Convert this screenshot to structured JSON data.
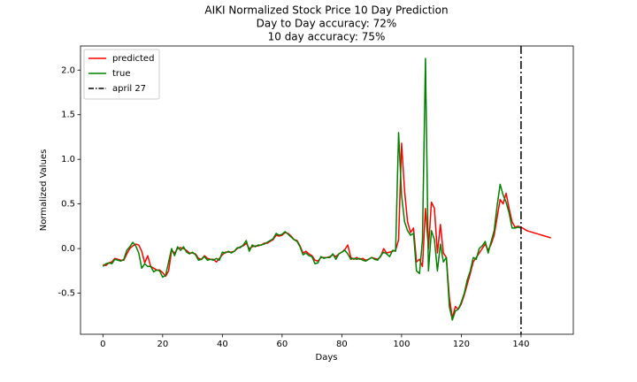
{
  "chart_data": {
    "type": "line",
    "title": "AIKI Normalized Stock Price 10 Day Prediction",
    "subtitle": [
      "Day to Day accuracy: 72%",
      "10 day accuracy: 75%"
    ],
    "x_label": "Days",
    "y_label": "Normalized Values",
    "xlim": [
      -7.5,
      157.5
    ],
    "ylim": [
      -0.96,
      2.27
    ],
    "xticks": [
      0,
      20,
      40,
      60,
      80,
      100,
      120,
      140
    ],
    "yticks": [
      -0.5,
      {
        "value": 0,
        "label": "0.0"
      },
      0.5,
      {
        "value": 1,
        "label": "1.0"
      },
      1.5,
      {
        "value": 2,
        "label": "2.0"
      }
    ],
    "legend": "upper left",
    "series": [
      {
        "name": "predicted",
        "color": "#ff0000",
        "x": [
          0,
          1,
          2,
          3,
          4,
          5,
          6,
          7,
          8,
          9,
          10,
          11,
          12,
          13,
          14,
          15,
          16,
          17,
          18,
          19,
          20,
          21,
          22,
          23,
          24,
          25,
          26,
          27,
          28,
          29,
          30,
          31,
          32,
          33,
          34,
          35,
          36,
          37,
          38,
          39,
          40,
          41,
          42,
          43,
          44,
          45,
          46,
          47,
          48,
          49,
          50,
          51,
          52,
          53,
          54,
          55,
          56,
          57,
          58,
          59,
          60,
          61,
          62,
          63,
          64,
          65,
          66,
          67,
          68,
          69,
          70,
          71,
          72,
          73,
          74,
          75,
          76,
          77,
          78,
          79,
          80,
          81,
          82,
          83,
          84,
          85,
          86,
          87,
          88,
          89,
          90,
          91,
          92,
          93,
          94,
          95,
          96,
          97,
          98,
          99,
          100,
          101,
          102,
          103,
          104,
          105,
          106,
          107,
          108,
          109,
          110,
          111,
          112,
          113,
          114,
          115,
          116,
          117,
          118,
          119,
          120,
          121,
          122,
          123,
          124,
          125,
          126,
          127,
          128,
          129,
          130,
          131,
          132,
          133,
          134,
          135,
          136,
          137,
          138,
          139,
          140,
          141,
          142,
          143,
          144,
          145,
          146,
          147,
          148,
          149,
          150
        ],
        "values": [
          -0.18,
          -0.19,
          -0.16,
          -0.15,
          -0.11,
          -0.12,
          -0.13,
          -0.13,
          -0.06,
          0.0,
          0.03,
          0.05,
          0.04,
          -0.03,
          -0.16,
          -0.08,
          -0.2,
          -0.22,
          -0.24,
          -0.24,
          -0.27,
          -0.31,
          -0.25,
          -0.02,
          -0.05,
          0.0,
          0.01,
          0.0,
          -0.02,
          -0.05,
          -0.05,
          -0.06,
          -0.11,
          -0.12,
          -0.08,
          -0.11,
          -0.12,
          -0.12,
          -0.15,
          -0.11,
          -0.07,
          -0.04,
          -0.04,
          -0.04,
          -0.03,
          0.0,
          0.02,
          0.03,
          0.06,
          0.0,
          0.02,
          0.03,
          0.03,
          0.04,
          0.06,
          0.06,
          0.08,
          0.1,
          0.15,
          0.14,
          0.15,
          0.18,
          0.17,
          0.14,
          0.1,
          0.09,
          0.03,
          -0.05,
          -0.03,
          -0.06,
          -0.08,
          -0.13,
          -0.14,
          -0.1,
          -0.1,
          -0.1,
          -0.09,
          -0.07,
          -0.09,
          -0.06,
          -0.04,
          -0.01,
          0.04,
          -0.1,
          -0.12,
          -0.1,
          -0.12,
          -0.11,
          -0.13,
          -0.12,
          -0.1,
          -0.11,
          -0.12,
          -0.09,
          0.0,
          -0.05,
          -0.04,
          -0.03,
          -0.02,
          0.1,
          1.18,
          0.65,
          0.3,
          0.18,
          0.23,
          -0.15,
          -0.12,
          -0.2,
          0.45,
          0.0,
          0.52,
          0.45,
          -0.05,
          0.27,
          -0.05,
          -0.1,
          -0.55,
          -0.78,
          -0.65,
          -0.68,
          -0.62,
          -0.52,
          -0.4,
          -0.28,
          -0.15,
          -0.1,
          -0.05,
          0.0,
          0.05,
          -0.02,
          0.05,
          0.15,
          0.35,
          0.55,
          0.5,
          0.62,
          0.45,
          0.3,
          0.24,
          0.25,
          0.24,
          0.22,
          0.2,
          0.19,
          0.18,
          0.17,
          0.16,
          0.15,
          0.14,
          0.13,
          0.12
        ]
      },
      {
        "name": "true",
        "color": "#008000",
        "x": [
          0,
          1,
          2,
          3,
          4,
          5,
          6,
          7,
          8,
          9,
          10,
          11,
          12,
          13,
          14,
          15,
          16,
          17,
          18,
          19,
          20,
          21,
          22,
          23,
          24,
          25,
          26,
          27,
          28,
          29,
          30,
          31,
          32,
          33,
          34,
          35,
          36,
          37,
          38,
          39,
          40,
          41,
          42,
          43,
          44,
          45,
          46,
          47,
          48,
          49,
          50,
          51,
          52,
          53,
          54,
          55,
          56,
          57,
          58,
          59,
          60,
          61,
          62,
          63,
          64,
          65,
          66,
          67,
          68,
          69,
          70,
          71,
          72,
          73,
          74,
          75,
          76,
          77,
          78,
          79,
          80,
          81,
          82,
          83,
          84,
          85,
          86,
          87,
          88,
          89,
          90,
          91,
          92,
          93,
          94,
          95,
          96,
          97,
          98,
          99,
          100,
          101,
          102,
          103,
          104,
          105,
          106,
          107,
          108,
          109,
          110,
          111,
          112,
          113,
          114,
          115,
          116,
          117,
          118,
          119,
          120,
          121,
          122,
          123,
          124,
          125,
          126,
          127,
          128,
          129,
          130,
          131,
          132,
          133,
          134,
          135,
          136,
          137,
          138,
          139,
          140
        ],
        "values": [
          -0.2,
          -0.17,
          -0.16,
          -0.17,
          -0.12,
          -0.13,
          -0.14,
          -0.12,
          -0.02,
          0.02,
          0.07,
          0.03,
          -0.05,
          -0.22,
          -0.17,
          -0.2,
          -0.2,
          -0.26,
          -0.24,
          -0.25,
          -0.32,
          -0.3,
          -0.15,
          0.0,
          -0.08,
          0.02,
          -0.02,
          0.02,
          -0.04,
          -0.06,
          -0.04,
          -0.07,
          -0.13,
          -0.12,
          -0.09,
          -0.13,
          -0.12,
          -0.13,
          -0.11,
          -0.13,
          -0.04,
          -0.05,
          -0.03,
          -0.05,
          -0.03,
          0.01,
          0.01,
          0.04,
          0.09,
          -0.03,
          0.04,
          0.02,
          0.04,
          0.04,
          0.05,
          0.07,
          0.09,
          0.11,
          0.17,
          0.15,
          0.16,
          0.19,
          0.16,
          0.13,
          0.1,
          0.08,
          0.02,
          -0.07,
          -0.05,
          -0.08,
          -0.09,
          -0.17,
          -0.16,
          -0.09,
          -0.11,
          -0.1,
          -0.1,
          -0.06,
          -0.12,
          -0.06,
          -0.04,
          -0.02,
          -0.06,
          -0.12,
          -0.11,
          -0.12,
          -0.11,
          -0.13,
          -0.14,
          -0.12,
          -0.1,
          -0.12,
          -0.13,
          -0.08,
          -0.04,
          -0.06,
          -0.09,
          -0.02,
          -0.03,
          1.3,
          0.6,
          0.3,
          0.2,
          0.15,
          0.17,
          -0.25,
          -0.28,
          0.1,
          2.13,
          -0.25,
          0.2,
          0.1,
          -0.25,
          0.05,
          -0.15,
          -0.1,
          -0.65,
          -0.8,
          -0.7,
          -0.68,
          -0.6,
          -0.5,
          -0.35,
          -0.25,
          -0.1,
          -0.12,
          0.0,
          0.03,
          0.08,
          -0.05,
          0.08,
          0.2,
          0.48,
          0.72,
          0.6,
          0.52,
          0.4,
          0.23,
          0.23,
          0.24,
          0.23
        ]
      }
    ],
    "vline": {
      "x": 140,
      "name": "april 27",
      "color": "#000000"
    }
  }
}
